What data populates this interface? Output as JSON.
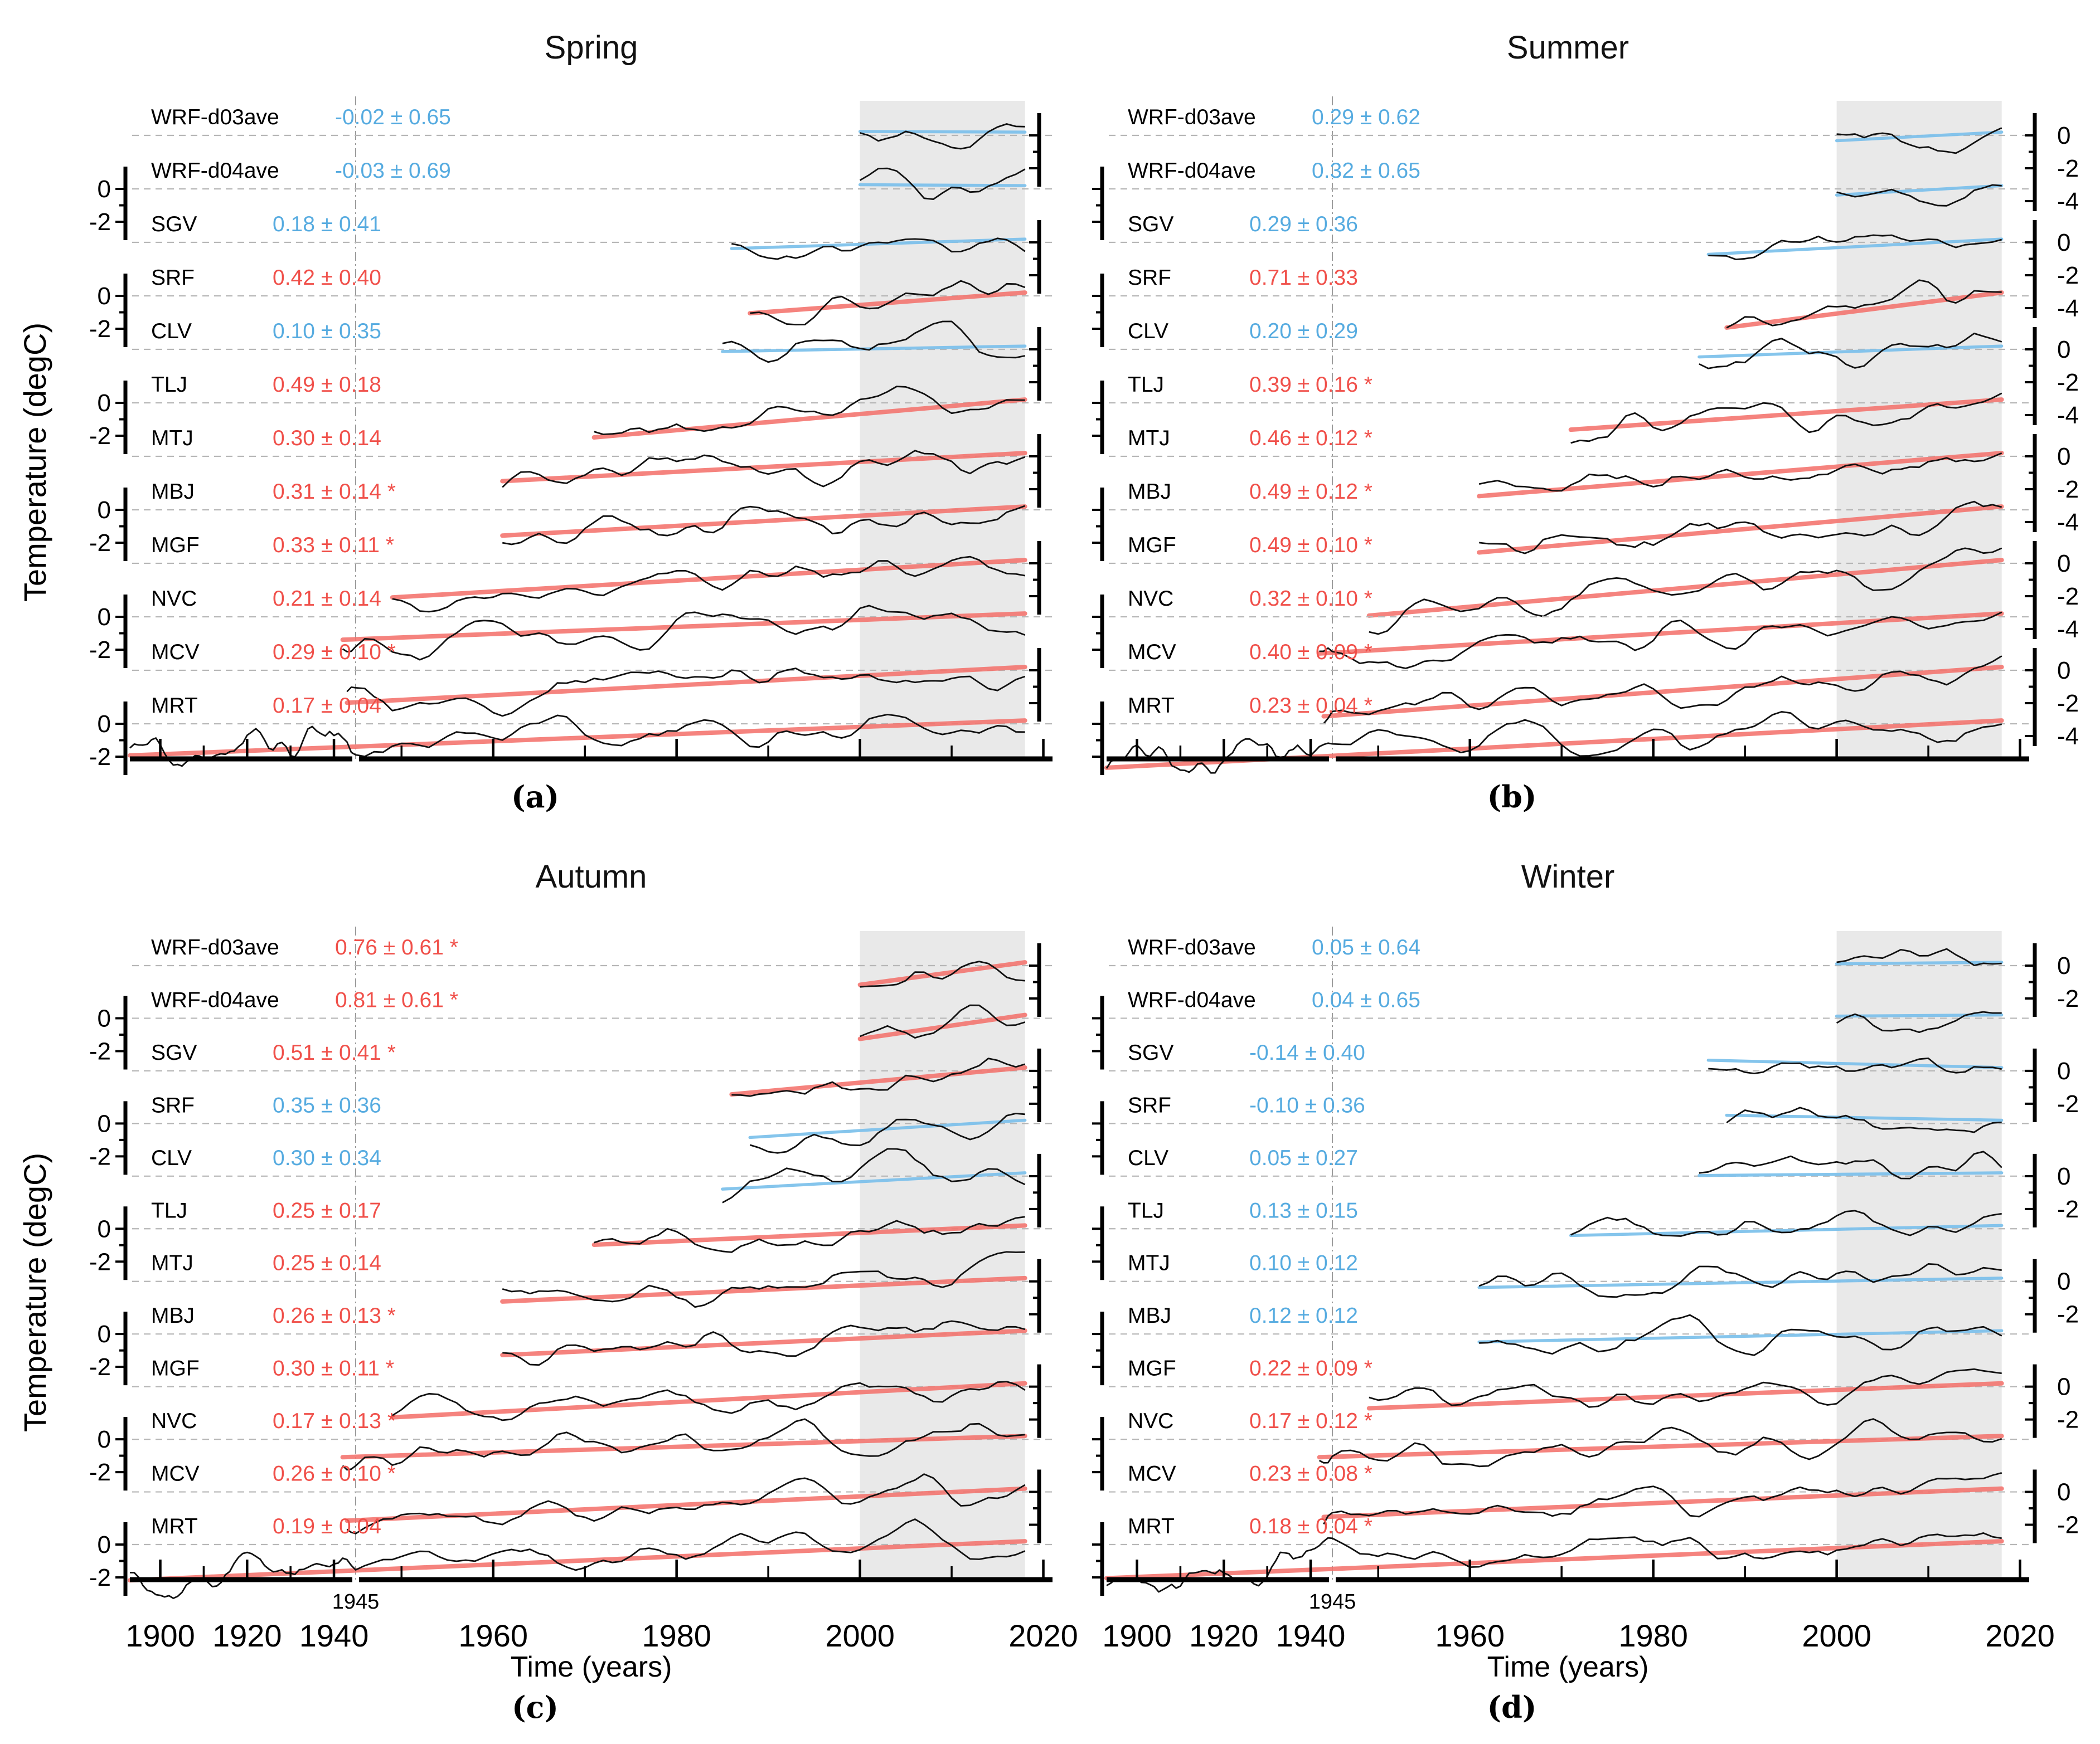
{
  "axis": {
    "xlabel": "Time (years)",
    "ylabel": "Temperature (degC)",
    "x_ticks": [
      "1900",
      "1920",
      "1940",
      "1960",
      "1980",
      "2000",
      "2020"
    ],
    "x_minor_ticks": [
      1910,
      1930,
      1950,
      1970,
      1990,
      2010
    ],
    "x_break_label": "1945"
  },
  "colors": {
    "red": "#f0504a",
    "blue": "#56abe0",
    "trend_red": "#f4736d",
    "trend_blue": "#7fc2ec",
    "band": "#e9e9e9",
    "curve": "#111111",
    "baseline": "#b6b6b6",
    "axis": "#000000"
  },
  "chart_data": [
    {
      "type": "line",
      "season": "Spring",
      "panel_label": "(a)",
      "x_range": [
        1893,
        2021
      ],
      "x_break": 1945,
      "highlight_span": [
        2000,
        2018
      ],
      "left_tick_labels": [
        "0",
        "-2"
      ],
      "right_tick_labels": [],
      "series": [
        {
          "name": "WRF-d03ave",
          "trend": "-0.02 ± 0.65",
          "slope": -0.02,
          "sig": false,
          "color": "blue",
          "start_year": 2000
        },
        {
          "name": "WRF-d04ave",
          "trend": "-0.03 ± 0.69",
          "slope": -0.03,
          "sig": false,
          "color": "blue",
          "start_year": 2000
        },
        {
          "name": "SGV",
          "trend": "0.18 ± 0.41",
          "slope": 0.18,
          "sig": false,
          "color": "blue",
          "start_year": 1986
        },
        {
          "name": "SRF",
          "trend": "0.42 ± 0.40",
          "slope": 0.42,
          "sig": false,
          "color": "red",
          "start_year": 1988
        },
        {
          "name": "CLV",
          "trend": "0.10 ± 0.35",
          "slope": 0.1,
          "sig": false,
          "color": "blue",
          "start_year": 1985
        },
        {
          "name": "TLJ",
          "trend": "0.49 ± 0.18",
          "slope": 0.49,
          "sig": false,
          "color": "red",
          "start_year": 1971
        },
        {
          "name": "MTJ",
          "trend": "0.30 ± 0.14",
          "slope": 0.3,
          "sig": false,
          "color": "red",
          "start_year": 1961
        },
        {
          "name": "MBJ",
          "trend": "0.31 ± 0.14",
          "slope": 0.31,
          "sig": true,
          "color": "red",
          "start_year": 1961
        },
        {
          "name": "MGF",
          "trend": "0.33 ± 0.11",
          "slope": 0.33,
          "sig": true,
          "color": "red",
          "start_year": 1949
        },
        {
          "name": "NVC",
          "trend": "0.21 ± 0.14",
          "slope": 0.21,
          "sig": false,
          "color": "red",
          "start_year": 1942
        },
        {
          "name": "MCV",
          "trend": "0.29 ± 0.10",
          "slope": 0.29,
          "sig": true,
          "color": "red",
          "start_year": 1943
        },
        {
          "name": "MRT",
          "trend": "0.17 ± 0.04",
          "slope": 0.17,
          "sig": false,
          "color": "red",
          "start_year": 1893
        }
      ]
    },
    {
      "type": "line",
      "season": "Summer",
      "panel_label": "(b)",
      "x_range": [
        1893,
        2021
      ],
      "x_break": 1945,
      "highlight_span": [
        2000,
        2018
      ],
      "left_tick_labels": [],
      "right_tick_labels": [
        "0",
        "-2",
        "-4"
      ],
      "series": [
        {
          "name": "WRF-d03ave",
          "trend": "0.29 ± 0.62",
          "slope": 0.29,
          "sig": false,
          "color": "blue",
          "start_year": 2000
        },
        {
          "name": "WRF-d04ave",
          "trend": "0.32 ± 0.65",
          "slope": 0.32,
          "sig": false,
          "color": "blue",
          "start_year": 2000
        },
        {
          "name": "SGV",
          "trend": "0.29 ± 0.36",
          "slope": 0.29,
          "sig": false,
          "color": "blue",
          "start_year": 1986
        },
        {
          "name": "SRF",
          "trend": "0.71 ± 0.33",
          "slope": 0.71,
          "sig": false,
          "color": "red",
          "start_year": 1988
        },
        {
          "name": "CLV",
          "trend": "0.20 ± 0.29",
          "slope": 0.2,
          "sig": false,
          "color": "blue",
          "start_year": 1985
        },
        {
          "name": "TLJ",
          "trend": "0.39 ± 0.16",
          "slope": 0.39,
          "sig": true,
          "color": "red",
          "start_year": 1971
        },
        {
          "name": "MTJ",
          "trend": "0.46 ± 0.12",
          "slope": 0.46,
          "sig": true,
          "color": "red",
          "start_year": 1961
        },
        {
          "name": "MBJ",
          "trend": "0.49 ± 0.12",
          "slope": 0.49,
          "sig": true,
          "color": "red",
          "start_year": 1961
        },
        {
          "name": "MGF",
          "trend": "0.49 ± 0.10",
          "slope": 0.49,
          "sig": true,
          "color": "red",
          "start_year": 1949
        },
        {
          "name": "NVC",
          "trend": "0.32 ± 0.10",
          "slope": 0.32,
          "sig": true,
          "color": "red",
          "start_year": 1942
        },
        {
          "name": "MCV",
          "trend": "0.40 ± 0.09",
          "slope": 0.4,
          "sig": true,
          "color": "red",
          "start_year": 1943
        },
        {
          "name": "MRT",
          "trend": "0.23 ± 0.04",
          "slope": 0.23,
          "sig": true,
          "color": "red",
          "start_year": 1893
        }
      ]
    },
    {
      "type": "line",
      "season": "Autumn",
      "panel_label": "(c)",
      "x_range": [
        1893,
        2021
      ],
      "x_break": 1945,
      "highlight_span": [
        2000,
        2018
      ],
      "left_tick_labels": [
        "0",
        "-2"
      ],
      "right_tick_labels": [],
      "series": [
        {
          "name": "WRF-d03ave",
          "trend": "0.76 ± 0.61",
          "slope": 0.76,
          "sig": true,
          "color": "red",
          "start_year": 2000
        },
        {
          "name": "WRF-d04ave",
          "trend": "0.81 ± 0.61",
          "slope": 0.81,
          "sig": true,
          "color": "red",
          "start_year": 2000
        },
        {
          "name": "SGV",
          "trend": "0.51 ± 0.41",
          "slope": 0.51,
          "sig": true,
          "color": "red",
          "start_year": 1986
        },
        {
          "name": "SRF",
          "trend": "0.35 ± 0.36",
          "slope": 0.35,
          "sig": false,
          "color": "blue",
          "start_year": 1988
        },
        {
          "name": "CLV",
          "trend": "0.30 ± 0.34",
          "slope": 0.3,
          "sig": false,
          "color": "blue",
          "start_year": 1985
        },
        {
          "name": "TLJ",
          "trend": "0.25 ± 0.17",
          "slope": 0.25,
          "sig": false,
          "color": "red",
          "start_year": 1971
        },
        {
          "name": "MTJ",
          "trend": "0.25 ± 0.14",
          "slope": 0.25,
          "sig": false,
          "color": "red",
          "start_year": 1961
        },
        {
          "name": "MBJ",
          "trend": "0.26 ± 0.13",
          "slope": 0.26,
          "sig": true,
          "color": "red",
          "start_year": 1961
        },
        {
          "name": "MGF",
          "trend": "0.30 ± 0.11",
          "slope": 0.3,
          "sig": true,
          "color": "red",
          "start_year": 1949
        },
        {
          "name": "NVC",
          "trend": "0.17 ± 0.13",
          "slope": 0.17,
          "sig": true,
          "color": "red",
          "start_year": 1942
        },
        {
          "name": "MCV",
          "trend": "0.26 ± 0.10",
          "slope": 0.26,
          "sig": true,
          "color": "red",
          "start_year": 1943
        },
        {
          "name": "MRT",
          "trend": "0.19 ± 0.04",
          "slope": 0.19,
          "sig": false,
          "color": "red",
          "start_year": 1893
        }
      ]
    },
    {
      "type": "line",
      "season": "Winter",
      "panel_label": "(d)",
      "x_range": [
        1893,
        2021
      ],
      "x_break": 1945,
      "highlight_span": [
        2000,
        2018
      ],
      "left_tick_labels": [],
      "right_tick_labels": [
        "0",
        "-2"
      ],
      "series": [
        {
          "name": "WRF-d03ave",
          "trend": "0.05 ± 0.64",
          "slope": 0.05,
          "sig": false,
          "color": "blue",
          "start_year": 2000
        },
        {
          "name": "WRF-d04ave",
          "trend": "0.04 ± 0.65",
          "slope": 0.04,
          "sig": false,
          "color": "blue",
          "start_year": 2000
        },
        {
          "name": "SGV",
          "trend": "-0.14 ± 0.40",
          "slope": -0.14,
          "sig": false,
          "color": "blue",
          "start_year": 1986
        },
        {
          "name": "SRF",
          "trend": "-0.10 ± 0.36",
          "slope": -0.1,
          "sig": false,
          "color": "blue",
          "start_year": 1988
        },
        {
          "name": "CLV",
          "trend": "0.05 ± 0.27",
          "slope": 0.05,
          "sig": false,
          "color": "blue",
          "start_year": 1985
        },
        {
          "name": "TLJ",
          "trend": "0.13 ± 0.15",
          "slope": 0.13,
          "sig": false,
          "color": "blue",
          "start_year": 1971
        },
        {
          "name": "MTJ",
          "trend": "0.10 ± 0.12",
          "slope": 0.1,
          "sig": false,
          "color": "blue",
          "start_year": 1961
        },
        {
          "name": "MBJ",
          "trend": "0.12 ± 0.12",
          "slope": 0.12,
          "sig": false,
          "color": "blue",
          "start_year": 1961
        },
        {
          "name": "MGF",
          "trend": "0.22 ± 0.09",
          "slope": 0.22,
          "sig": true,
          "color": "red",
          "start_year": 1949
        },
        {
          "name": "NVC",
          "trend": "0.17 ± 0.12",
          "slope": 0.17,
          "sig": true,
          "color": "red",
          "start_year": 1942
        },
        {
          "name": "MCV",
          "trend": "0.23 ± 0.08",
          "slope": 0.23,
          "sig": true,
          "color": "red",
          "start_year": 1943
        },
        {
          "name": "MRT",
          "trend": "0.18 ± 0.04",
          "slope": 0.18,
          "sig": true,
          "color": "red",
          "start_year": 1893
        }
      ]
    }
  ]
}
